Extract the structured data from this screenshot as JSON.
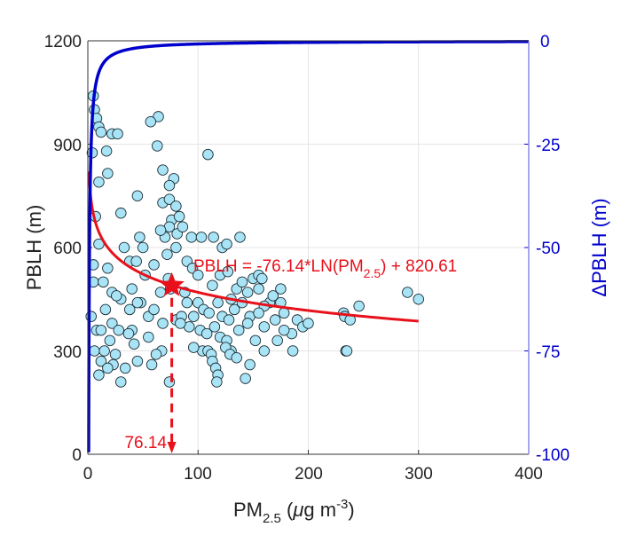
{
  "chart_data": {
    "type": "scatter",
    "xlabel": "PM",
    "xlabel_sub": "2.5",
    "xlabel_unit_open": " (",
    "xlabel_mu": "μ",
    "xlabel_unit": "g m",
    "xlabel_sup": "-3",
    "xlabel_close": ")",
    "ylabel": "PBLH (m)",
    "y2label": "ΔPBLH (m)",
    "xlim": [
      0,
      400
    ],
    "ylim": [
      0,
      1200
    ],
    "y2lim": [
      -100,
      0
    ],
    "xticks": [
      "0",
      "100",
      "200",
      "300",
      "400"
    ],
    "yticks": [
      "0",
      "300",
      "600",
      "900",
      "1200"
    ],
    "y2ticks": [
      "-100",
      "-75",
      "-50",
      "-25",
      "0"
    ],
    "grid": true,
    "colors": {
      "points": "#a8e4f5",
      "point_edge": "#1a2a33",
      "fit": "#e8101a",
      "derivative": "#0000cc"
    },
    "fit": {
      "a": -76.14,
      "b": 820.61,
      "xmin": 1,
      "xmax": 300
    },
    "fit_label": "PBLH = -76.14*LN(PM",
    "fit_label_sub": "2.5",
    "fit_label_end": ") + 820.61",
    "derivative": {
      "k": -76.14
    },
    "marker": {
      "x": 76.14,
      "y": 490,
      "label": "76.14"
    },
    "points": [
      [
        5,
        1040
      ],
      [
        6,
        1000
      ],
      [
        8,
        975
      ],
      [
        10,
        950
      ],
      [
        12,
        935
      ],
      [
        22,
        930
      ],
      [
        27,
        930
      ],
      [
        18,
        815
      ],
      [
        10,
        790
      ],
      [
        4,
        875
      ],
      [
        17,
        880
      ],
      [
        64,
        980
      ],
      [
        57,
        965
      ],
      [
        78,
        800
      ],
      [
        68,
        825
      ],
      [
        68,
        730
      ],
      [
        63,
        895
      ],
      [
        74,
        780
      ],
      [
        74,
        740
      ],
      [
        80,
        720
      ],
      [
        76,
        680
      ],
      [
        74,
        660
      ],
      [
        83,
        690
      ],
      [
        81,
        640
      ],
      [
        86,
        660
      ],
      [
        70,
        630
      ],
      [
        66,
        650
      ],
      [
        94,
        630
      ],
      [
        114,
        630
      ],
      [
        103,
        630
      ],
      [
        138,
        630
      ],
      [
        109,
        870
      ],
      [
        45,
        750
      ],
      [
        38,
        560
      ],
      [
        33,
        600
      ],
      [
        10,
        610
      ],
      [
        7,
        690
      ],
      [
        5,
        550
      ],
      [
        5,
        500
      ],
      [
        30,
        700
      ],
      [
        3,
        400
      ],
      [
        6,
        300
      ],
      [
        10,
        230
      ],
      [
        47,
        630
      ],
      [
        50,
        600
      ],
      [
        44,
        560
      ],
      [
        52,
        520
      ],
      [
        40,
        480
      ],
      [
        30,
        450
      ],
      [
        48,
        440
      ],
      [
        60,
        550
      ],
      [
        72,
        580
      ],
      [
        80,
        600
      ],
      [
        73,
        510
      ],
      [
        66,
        470
      ],
      [
        90,
        560
      ],
      [
        95,
        540
      ],
      [
        113,
        490
      ],
      [
        120,
        520
      ],
      [
        122,
        600
      ],
      [
        126,
        610
      ],
      [
        127,
        530
      ],
      [
        135,
        480
      ],
      [
        130,
        450
      ],
      [
        150,
        510
      ],
      [
        155,
        520
      ],
      [
        158,
        510
      ],
      [
        140,
        500
      ],
      [
        145,
        470
      ],
      [
        155,
        480
      ],
      [
        165,
        440
      ],
      [
        168,
        460
      ],
      [
        175,
        480
      ],
      [
        160,
        430
      ],
      [
        55,
        400
      ],
      [
        38,
        420
      ],
      [
        22,
        470
      ],
      [
        26,
        460
      ],
      [
        14,
        500
      ],
      [
        18,
        540
      ],
      [
        16,
        420
      ],
      [
        8,
        360
      ],
      [
        12,
        360
      ],
      [
        22,
        380
      ],
      [
        28,
        360
      ],
      [
        40,
        360
      ],
      [
        45,
        440
      ],
      [
        60,
        420
      ],
      [
        75,
        480
      ],
      [
        88,
        470
      ],
      [
        100,
        440
      ],
      [
        105,
        420
      ],
      [
        110,
        410
      ],
      [
        118,
        440
      ],
      [
        122,
        400
      ],
      [
        128,
        390
      ],
      [
        133,
        420
      ],
      [
        140,
        440
      ],
      [
        147,
        400
      ],
      [
        155,
        410
      ],
      [
        160,
        370
      ],
      [
        170,
        390
      ],
      [
        178,
        410
      ],
      [
        185,
        350
      ],
      [
        190,
        390
      ],
      [
        195,
        370
      ],
      [
        200,
        380
      ],
      [
        175,
        440
      ],
      [
        172,
        330
      ],
      [
        68,
        380
      ],
      [
        80,
        390
      ],
      [
        90,
        440
      ],
      [
        96,
        400
      ],
      [
        102,
        360
      ],
      [
        108,
        350
      ],
      [
        115,
        370
      ],
      [
        120,
        340
      ],
      [
        126,
        330
      ],
      [
        130,
        300
      ],
      [
        137,
        360
      ],
      [
        145,
        380
      ],
      [
        152,
        330
      ],
      [
        160,
        300
      ],
      [
        178,
        360
      ],
      [
        186,
        300
      ],
      [
        37,
        350
      ],
      [
        42,
        320
      ],
      [
        55,
        340
      ],
      [
        67,
        300
      ],
      [
        74,
        210
      ],
      [
        62,
        290
      ],
      [
        20,
        330
      ],
      [
        25,
        290
      ],
      [
        23,
        260
      ],
      [
        30,
        210
      ],
      [
        34,
        250
      ],
      [
        15,
        300
      ],
      [
        12,
        270
      ],
      [
        18,
        250
      ],
      [
        45,
        270
      ],
      [
        58,
        260
      ],
      [
        104,
        300
      ],
      [
        109,
        300
      ],
      [
        112,
        290
      ],
      [
        113,
        270
      ],
      [
        116,
        250
      ],
      [
        118,
        230
      ],
      [
        117,
        210
      ],
      [
        125,
        310
      ],
      [
        129,
        290
      ],
      [
        135,
        280
      ],
      [
        143,
        220
      ],
      [
        147,
        260
      ],
      [
        96,
        310
      ],
      [
        85,
        400
      ],
      [
        92,
        370
      ],
      [
        232,
        410
      ],
      [
        233,
        400
      ],
      [
        238,
        390
      ],
      [
        246,
        430
      ],
      [
        234,
        300
      ],
      [
        235,
        300
      ],
      [
        290,
        470
      ],
      [
        300,
        450
      ],
      [
        100,
        520
      ],
      [
        84,
        380
      ]
    ]
  }
}
